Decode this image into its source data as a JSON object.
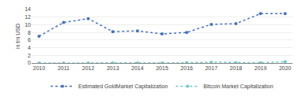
{
  "chart_data": {
    "type": "line",
    "x": [
      2010,
      2011,
      2012,
      2013,
      2014,
      2015,
      2016,
      2017,
      2018,
      2019,
      2020
    ],
    "series": [
      {
        "name": "Estimated GoldMarket Capitalization",
        "color": "#4472c4",
        "line_style": "dotted",
        "marker": "dot",
        "values": [
          7.0,
          10.6,
          11.6,
          8.2,
          8.4,
          7.6,
          8.0,
          10.1,
          10.3,
          12.9,
          12.9
        ]
      },
      {
        "name": "Bitcoin Market Capitalization",
        "color": "#70c8c8",
        "line_style": "dotted",
        "marker": "dot",
        "values": [
          0.0,
          0.0,
          0.0,
          0.0,
          0.0,
          0.0,
          0.08,
          0.22,
          0.1,
          0.07,
          0.35
        ]
      }
    ],
    "ylabel": "in trn USD",
    "xlim": [
      2009.7,
      2020.3
    ],
    "xticks": [
      2010,
      2011,
      2012,
      2013,
      2014,
      2015,
      2016,
      2017,
      2018,
      2019,
      2020
    ],
    "ylim": [
      0,
      14
    ],
    "yticks": [
      0,
      2,
      4,
      6,
      8,
      10,
      12,
      14
    ],
    "grid": "y",
    "legend": "bottom"
  }
}
